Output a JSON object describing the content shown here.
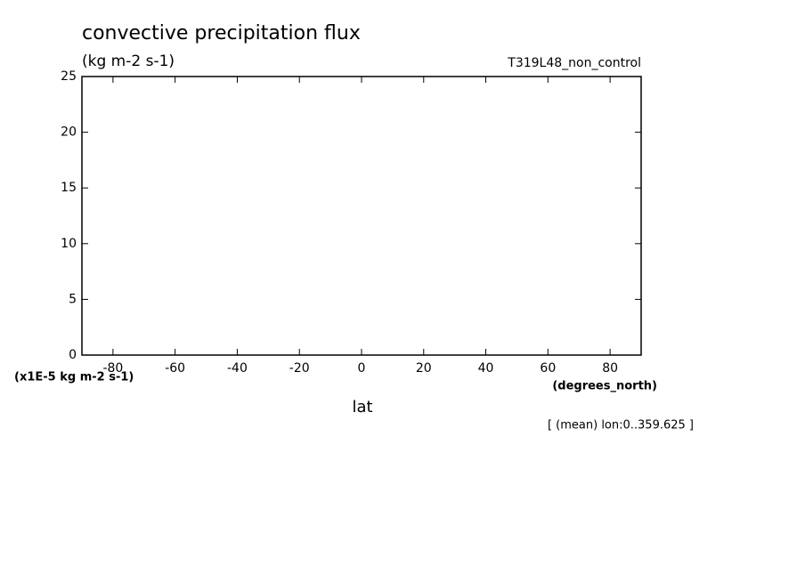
{
  "chart_data": {
    "type": "line",
    "title": "convective precipitation flux",
    "subtitle": "(kg m-2 s-1)",
    "run_label": "T319L48_non_control",
    "y_unit": "(x1E-5 kg m-2 s-1)",
    "x_unit": "(degrees_north)",
    "xlabel": "lat",
    "note": "[ (mean) lon:0..359.625 ]",
    "xlim": [
      -90,
      90
    ],
    "xticks": [
      -80,
      -60,
      -40,
      -20,
      0,
      20,
      40,
      60,
      80
    ],
    "ylim": [
      0,
      25
    ],
    "yticks": [
      0,
      5,
      10,
      15,
      20,
      25
    ],
    "grid": false
  }
}
